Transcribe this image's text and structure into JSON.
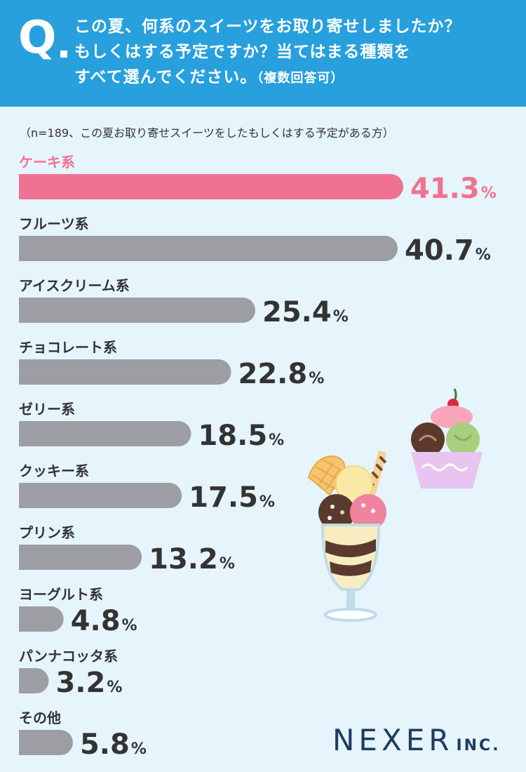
{
  "header": {
    "q_mark": "Q",
    "question_line1": "この夏、何系のスイーツをお取り寄せしましたか？",
    "question_line2": "もしくはする予定ですか？当てはまる種類を",
    "question_line3": "すべて選んでください。",
    "question_note": "（複数回答可）"
  },
  "note": "（n=189、この夏お取り寄せスイーツをしたもしくはする予定がある方）",
  "chart_data": {
    "type": "bar",
    "orientation": "horizontal",
    "categories": [
      "ケーキ系",
      "フルーツ系",
      "アイスクリーム系",
      "チョコレート系",
      "ゼリー系",
      "クッキー系",
      "プリン系",
      "ヨーグルト系",
      "パンナコッタ系",
      "その他"
    ],
    "values": [
      41.3,
      40.7,
      25.4,
      22.8,
      18.5,
      17.5,
      13.2,
      4.8,
      3.2,
      5.8
    ],
    "value_labels": [
      "41.3",
      "40.7",
      "25.4",
      "22.8",
      "18.5",
      "17.5",
      "13.2",
      "4.8",
      "3.2",
      "5.8"
    ],
    "unit": "%",
    "highlight_index": 0,
    "highlight_color": "#f07292",
    "bar_color": "#9d9ea3",
    "label_color": "#333333"
  },
  "brand": {
    "name": "NEXER",
    "suffix": "INC."
  },
  "colors": {
    "header_bg": "#27a0dd",
    "page_bg": "#e6f4fc",
    "logo": "#1e3c60"
  }
}
